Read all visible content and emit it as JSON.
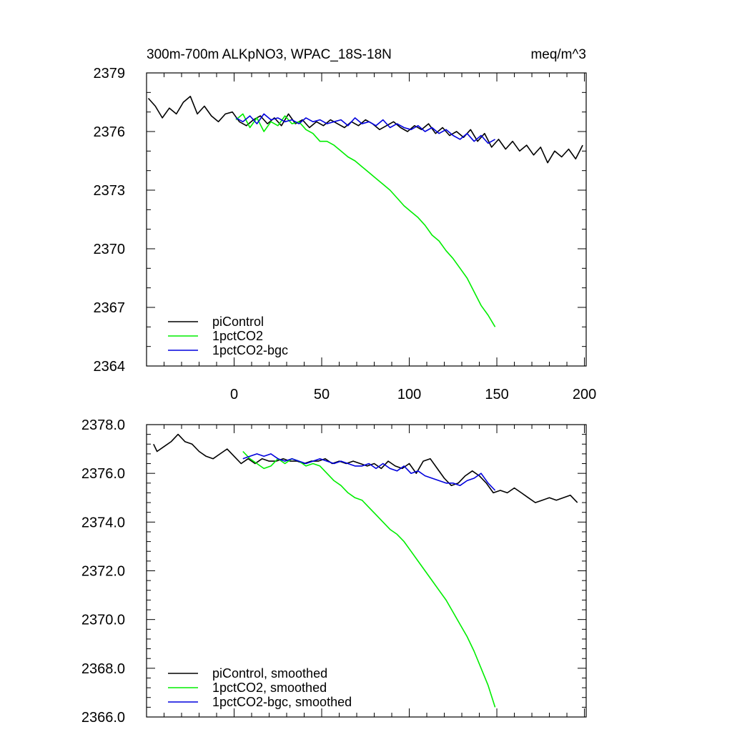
{
  "title_left": "300m-700m ALKpNO3, WPAC_18S-18N",
  "title_right": "meq/m^3",
  "colors": {
    "piControl": "#000000",
    "1pctCO2": "#00ee00",
    "1pctCO2-bgc": "#0000dd"
  },
  "chart_data": [
    {
      "type": "line",
      "panel": "top",
      "xlim": [
        -50,
        201
      ],
      "ylim": [
        2364,
        2379
      ],
      "x_ticks": [
        0,
        50,
        100,
        150,
        200
      ],
      "x_tick_labels": [
        "0",
        "50",
        "100",
        "150",
        "200"
      ],
      "y_ticks": [
        2364,
        2367,
        2370,
        2373,
        2376,
        2379
      ],
      "y_tick_labels": [
        "2364",
        "2367",
        "2370",
        "2373",
        "2376",
        "2379"
      ],
      "legend_position": "bottom-left",
      "series": [
        {
          "name": "piControl",
          "color": "#000000",
          "x": [
            -49,
            -45,
            -41,
            -37,
            -33,
            -29,
            -25,
            -21,
            -17,
            -13,
            -9,
            -5,
            -1,
            3,
            7,
            11,
            15,
            19,
            23,
            27,
            31,
            35,
            39,
            43,
            47,
            51,
            55,
            59,
            63,
            67,
            71,
            75,
            79,
            83,
            87,
            91,
            95,
            99,
            103,
            107,
            111,
            115,
            119,
            123,
            127,
            131,
            135,
            139,
            143,
            147,
            151,
            155,
            159,
            163,
            167,
            171,
            175,
            179,
            183,
            187,
            191,
            195,
            199
          ],
          "y": [
            2377.7,
            2377.3,
            2376.7,
            2377.2,
            2376.9,
            2377.5,
            2377.8,
            2376.9,
            2377.3,
            2376.8,
            2376.5,
            2376.9,
            2377.0,
            2376.5,
            2376.3,
            2376.6,
            2376.8,
            2376.4,
            2376.7,
            2376.3,
            2376.9,
            2376.4,
            2376.6,
            2376.2,
            2376.5,
            2376.3,
            2376.6,
            2376.4,
            2376.2,
            2376.5,
            2376.3,
            2376.6,
            2376.4,
            2376.1,
            2376.3,
            2376.5,
            2376.2,
            2376.0,
            2376.3,
            2376.1,
            2376.4,
            2375.9,
            2376.2,
            2375.8,
            2376.0,
            2375.7,
            2376.1,
            2375.5,
            2375.9,
            2375.2,
            2375.6,
            2375.1,
            2375.5,
            2375.0,
            2375.3,
            2374.8,
            2375.2,
            2374.4,
            2375.0,
            2374.7,
            2375.1,
            2374.6,
            2375.3
          ]
        },
        {
          "name": "1pctCO2",
          "color": "#00ee00",
          "x": [
            1,
            5,
            9,
            13,
            17,
            21,
            25,
            29,
            33,
            37,
            41,
            45,
            49,
            53,
            57,
            61,
            65,
            69,
            73,
            77,
            81,
            85,
            89,
            93,
            97,
            101,
            105,
            109,
            113,
            117,
            121,
            125,
            129,
            133,
            137,
            141,
            145,
            149
          ],
          "y": [
            2376.6,
            2376.9,
            2376.2,
            2376.7,
            2376.0,
            2376.5,
            2376.3,
            2376.8,
            2376.4,
            2376.5,
            2376.1,
            2375.9,
            2375.5,
            2375.5,
            2375.3,
            2375.0,
            2374.7,
            2374.5,
            2374.2,
            2373.9,
            2373.6,
            2373.3,
            2373.0,
            2372.6,
            2372.2,
            2371.9,
            2371.6,
            2371.2,
            2370.7,
            2370.4,
            2369.9,
            2369.5,
            2369.0,
            2368.5,
            2367.8,
            2367.1,
            2366.6,
            2366.0
          ]
        },
        {
          "name": "1pctCO2-bgc",
          "color": "#0000dd",
          "x": [
            1,
            5,
            9,
            13,
            17,
            21,
            25,
            29,
            33,
            37,
            41,
            45,
            49,
            53,
            57,
            61,
            65,
            69,
            73,
            77,
            81,
            85,
            89,
            93,
            97,
            101,
            105,
            109,
            113,
            117,
            121,
            125,
            129,
            133,
            137,
            141,
            145,
            149
          ],
          "y": [
            2376.7,
            2376.5,
            2376.8,
            2376.4,
            2376.9,
            2376.6,
            2376.7,
            2376.5,
            2376.6,
            2376.4,
            2376.7,
            2376.5,
            2376.6,
            2376.4,
            2376.5,
            2376.6,
            2376.3,
            2376.7,
            2376.4,
            2376.5,
            2376.3,
            2376.6,
            2376.2,
            2376.4,
            2376.2,
            2376.1,
            2376.3,
            2376.0,
            2376.2,
            2375.9,
            2376.1,
            2375.8,
            2375.6,
            2375.9,
            2375.5,
            2375.8,
            2375.4,
            2375.6
          ]
        }
      ]
    },
    {
      "type": "line",
      "panel": "bottom",
      "xlim": [
        -50,
        201
      ],
      "ylim": [
        2366.0,
        2378.0
      ],
      "x_ticks": [
        0,
        50,
        100,
        150,
        200
      ],
      "y_ticks": [
        2366,
        2368,
        2370,
        2372,
        2374,
        2376,
        2378
      ],
      "y_tick_labels": [
        "2366.0",
        "2368.0",
        "2370.0",
        "2372.0",
        "2374.0",
        "2376.0",
        "2378.0"
      ],
      "legend_position": "bottom-left",
      "series": [
        {
          "name": "piControl, smoothed",
          "color": "#000000",
          "x": [
            -46,
            -44,
            -40,
            -36,
            -32,
            -28,
            -24,
            -20,
            -16,
            -12,
            -8,
            -4,
            0,
            4,
            8,
            12,
            16,
            20,
            24,
            28,
            32,
            36,
            40,
            44,
            48,
            52,
            56,
            60,
            64,
            68,
            72,
            76,
            80,
            84,
            88,
            92,
            96,
            100,
            104,
            108,
            112,
            116,
            120,
            124,
            128,
            132,
            136,
            140,
            144,
            148,
            152,
            156,
            160,
            164,
            168,
            172,
            176,
            180,
            184,
            188,
            192,
            196
          ],
          "y": [
            2377.2,
            2376.9,
            2377.1,
            2377.3,
            2377.6,
            2377.3,
            2377.2,
            2376.9,
            2376.7,
            2376.6,
            2376.8,
            2377.0,
            2376.7,
            2376.4,
            2376.6,
            2376.4,
            2376.6,
            2376.5,
            2376.5,
            2376.6,
            2376.5,
            2376.5,
            2376.4,
            2376.5,
            2376.5,
            2376.6,
            2376.4,
            2376.5,
            2376.4,
            2376.5,
            2376.4,
            2376.3,
            2376.4,
            2376.2,
            2376.5,
            2376.3,
            2376.2,
            2376.4,
            2376.0,
            2376.5,
            2376.6,
            2376.2,
            2375.8,
            2375.5,
            2375.6,
            2375.9,
            2376.1,
            2375.9,
            2375.6,
            2375.2,
            2375.3,
            2375.2,
            2375.4,
            2375.2,
            2375.0,
            2374.8,
            2374.9,
            2375.0,
            2374.9,
            2375.0,
            2375.1,
            2374.8
          ]
        },
        {
          "name": "1pctCO2, smoothed",
          "color": "#00ee00",
          "x": [
            5,
            9,
            13,
            17,
            21,
            25,
            29,
            33,
            37,
            41,
            45,
            49,
            53,
            57,
            61,
            65,
            69,
            73,
            77,
            81,
            85,
            89,
            93,
            97,
            101,
            105,
            109,
            113,
            117,
            121,
            125,
            129,
            133,
            137,
            141,
            145,
            149
          ],
          "y": [
            2376.9,
            2376.6,
            2376.4,
            2376.2,
            2376.3,
            2376.6,
            2376.4,
            2376.6,
            2376.5,
            2376.3,
            2376.4,
            2376.3,
            2376.0,
            2375.7,
            2375.5,
            2375.2,
            2375.0,
            2374.9,
            2374.6,
            2374.3,
            2374.0,
            2373.7,
            2373.5,
            2373.2,
            2372.8,
            2372.4,
            2372.0,
            2371.6,
            2371.2,
            2370.8,
            2370.3,
            2369.8,
            2369.3,
            2368.7,
            2368.0,
            2367.3,
            2366.4
          ]
        },
        {
          "name": "1pctCO2-bgc, smoothed",
          "color": "#0000dd",
          "x": [
            5,
            9,
            13,
            17,
            21,
            25,
            29,
            33,
            37,
            41,
            45,
            49,
            53,
            57,
            61,
            65,
            69,
            73,
            77,
            81,
            85,
            89,
            93,
            97,
            101,
            105,
            109,
            113,
            117,
            121,
            125,
            129,
            133,
            137,
            141,
            145,
            149
          ],
          "y": [
            2376.6,
            2376.7,
            2376.8,
            2376.7,
            2376.8,
            2376.6,
            2376.5,
            2376.6,
            2376.5,
            2376.4,
            2376.5,
            2376.6,
            2376.5,
            2376.4,
            2376.5,
            2376.4,
            2376.3,
            2376.3,
            2376.4,
            2376.2,
            2376.4,
            2376.2,
            2376.1,
            2376.3,
            2376.0,
            2376.1,
            2375.9,
            2375.8,
            2375.7,
            2375.6,
            2375.6,
            2375.5,
            2375.7,
            2375.8,
            2376.0,
            2375.6,
            2375.3
          ]
        }
      ]
    }
  ]
}
